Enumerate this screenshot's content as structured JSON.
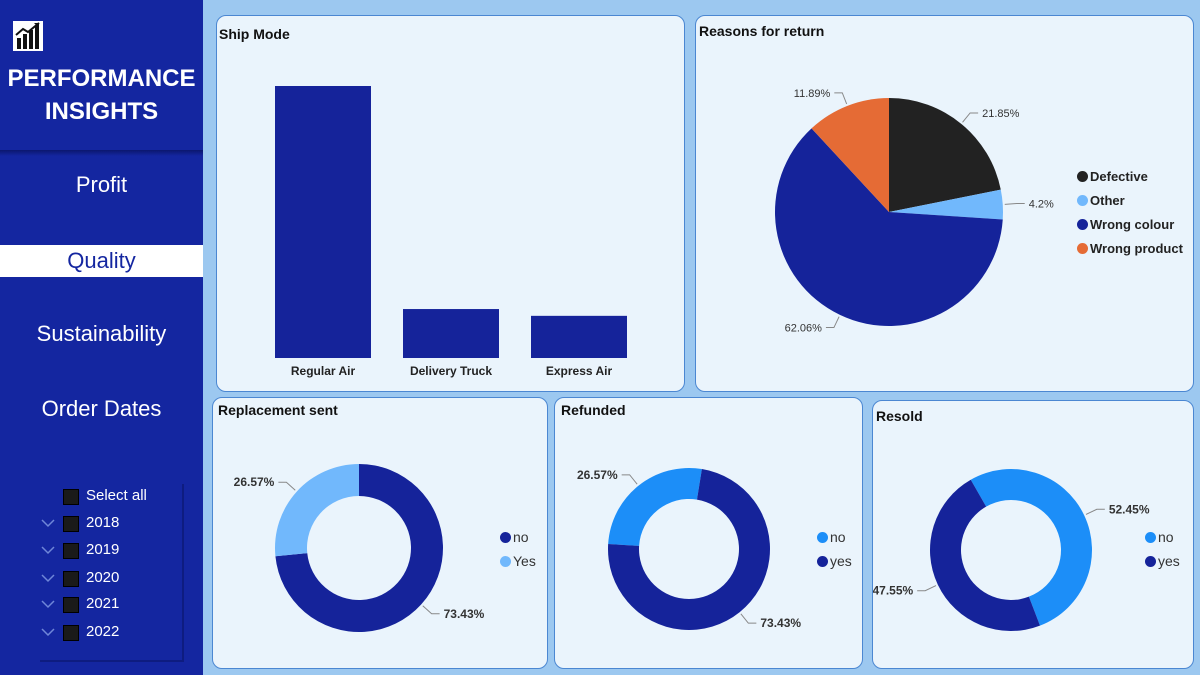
{
  "sidebar": {
    "title_line1": "PERFORMANCE",
    "title_line2": "INSIGHTS",
    "nav": [
      {
        "label": "Profit",
        "active": false
      },
      {
        "label": "Quality",
        "active": true
      },
      {
        "label": "Sustainability",
        "active": false
      },
      {
        "label": "Order Dates",
        "active": false
      }
    ],
    "slicer": {
      "select_all": "Select all",
      "years": [
        "2018",
        "2019",
        "2020",
        "2021",
        "2022"
      ]
    }
  },
  "colors": {
    "sidebar": "#1426a0",
    "navy": "#15239a",
    "light_blue": "#71b8fc",
    "bright_blue": "#1c8ef8",
    "black": "#222222",
    "orange": "#e56b35"
  },
  "chart_data": [
    {
      "type": "bar",
      "title": "Ship Mode",
      "categories": [
        "Regular Air",
        "Delivery Truck",
        "Express Air"
      ],
      "values": [
        100,
        18,
        15.5
      ],
      "ylim": [
        0,
        100
      ],
      "grid": false
    },
    {
      "type": "pie",
      "title": "Reasons for return",
      "labels": [
        "Defective",
        "Other",
        "Wrong colour",
        "Wrong product"
      ],
      "values": [
        21.85,
        4.2,
        62.06,
        11.89
      ],
      "value_labels": [
        "21.85%",
        "4.2%",
        "62.06%",
        "11.89%"
      ],
      "colors": [
        "#222222",
        "#71b8fc",
        "#15239a",
        "#e56b35"
      ],
      "legend": "right"
    },
    {
      "type": "pie",
      "title": "Replacement sent",
      "labels": [
        "no",
        "Yes"
      ],
      "values": [
        73.43,
        26.57
      ],
      "value_labels": [
        "73.43%",
        "26.57%"
      ],
      "colors": [
        "#15239a",
        "#71b8fc"
      ],
      "donut": true,
      "legend": "right"
    },
    {
      "type": "pie",
      "title": "Refunded",
      "labels": [
        "no",
        "yes"
      ],
      "values": [
        26.57,
        73.43
      ],
      "value_labels": [
        "26.57%",
        "73.43%"
      ],
      "colors": [
        "#1c8ef8",
        "#15239a"
      ],
      "donut": true,
      "legend": "right"
    },
    {
      "type": "pie",
      "title": "Resold",
      "labels": [
        "no",
        "yes"
      ],
      "values": [
        52.45,
        47.55
      ],
      "value_labels": [
        "52.45%",
        "47.55%"
      ],
      "colors": [
        "#1c8ef8",
        "#15239a"
      ],
      "donut": true,
      "legend": "right"
    }
  ]
}
